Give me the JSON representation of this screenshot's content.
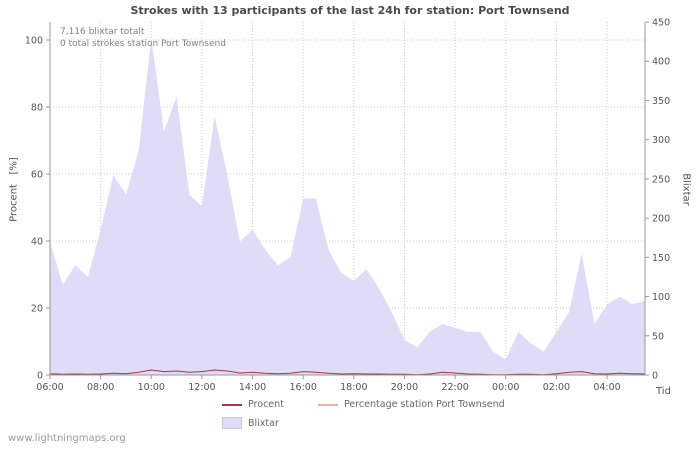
{
  "page": {
    "watermark": "www.lightningmaps.org"
  },
  "chart_data": {
    "type": "area",
    "title": "Strokes with 13 participants of the last 24h for station: Port Townsend",
    "annotations": [
      "7,116 blixtar totalt",
      "0 total strokes station Port Townsend"
    ],
    "xlabel": "Tid",
    "ylabel_left": "Procent   [%]",
    "ylabel_right": "Blixtar",
    "x_tick_labels": [
      "06:00",
      "08:00",
      "10:00",
      "12:00",
      "14:00",
      "16:00",
      "18:00",
      "20:00",
      "22:00",
      "00:00",
      "02:00",
      "04:00"
    ],
    "left_axis": {
      "min": 0,
      "max": 100,
      "ticks": [
        0,
        20,
        40,
        60,
        80,
        100
      ]
    },
    "right_axis": {
      "min": 0,
      "max": 450,
      "ticks": [
        0,
        50,
        100,
        150,
        200,
        250,
        300,
        350,
        400,
        450
      ]
    },
    "x": [
      "06:00",
      "06:30",
      "07:00",
      "07:30",
      "08:00",
      "08:30",
      "09:00",
      "09:30",
      "10:00",
      "10:30",
      "11:00",
      "11:30",
      "12:00",
      "12:30",
      "13:00",
      "13:30",
      "14:00",
      "14:30",
      "15:00",
      "15:30",
      "16:00",
      "16:30",
      "17:00",
      "17:30",
      "18:00",
      "18:30",
      "19:00",
      "19:30",
      "20:00",
      "20:30",
      "21:00",
      "21:30",
      "22:00",
      "22:30",
      "23:00",
      "23:30",
      "00:00",
      "00:30",
      "01:00",
      "01:30",
      "02:00",
      "02:30",
      "03:00",
      "03:30",
      "04:00",
      "04:30",
      "05:00",
      "05:30"
    ],
    "series": [
      {
        "name": "Blixtar",
        "type": "area",
        "axis": "right",
        "color": "#dedcf7",
        "values": [
          170,
          115,
          140,
          125,
          185,
          255,
          230,
          285,
          430,
          310,
          355,
          230,
          215,
          330,
          255,
          170,
          185,
          160,
          140,
          150,
          225,
          225,
          160,
          130,
          120,
          135,
          110,
          80,
          45,
          35,
          55,
          65,
          60,
          55,
          55,
          30,
          20,
          55,
          40,
          30,
          55,
          80,
          155,
          65,
          90,
          100,
          90,
          95
        ]
      },
      {
        "name": "Procent",
        "type": "line",
        "axis": "left",
        "color": "#aa3344",
        "values": [
          0.4,
          0.2,
          0.3,
          0.2,
          0.3,
          0.5,
          0.4,
          0.8,
          1.5,
          1.0,
          1.2,
          0.8,
          1.0,
          1.5,
          1.2,
          0.6,
          0.8,
          0.5,
          0.4,
          0.5,
          1.0,
          0.8,
          0.5,
          0.3,
          0.4,
          0.3,
          0.3,
          0.2,
          0.2,
          0.1,
          0.3,
          0.8,
          0.6,
          0.3,
          0.2,
          0.1,
          0.1,
          0.2,
          0.2,
          0.1,
          0.4,
          0.8,
          1.0,
          0.4,
          0.3,
          0.5,
          0.4,
          0.3
        ]
      },
      {
        "name": "Percentage station Port Townsend",
        "type": "line",
        "axis": "left",
        "color": "#f0b39e",
        "values": [
          0,
          0,
          0,
          0,
          0,
          0,
          0,
          0,
          0,
          0,
          0,
          0,
          0,
          0,
          0,
          0,
          0,
          0,
          0,
          0,
          0,
          0,
          0,
          0,
          0,
          0,
          0,
          0,
          0,
          0,
          0,
          0,
          0,
          0,
          0,
          0,
          0,
          0,
          0,
          0,
          0,
          0,
          0,
          0,
          0,
          0,
          0,
          0
        ]
      }
    ],
    "legend": [
      {
        "label": "Procent",
        "marker": "line",
        "color": "#aa3344"
      },
      {
        "label": "Percentage station Port Townsend",
        "marker": "line",
        "color": "#f0b39e"
      },
      {
        "label": "Blixtar",
        "marker": "area",
        "color": "#dedcf7"
      }
    ],
    "style": {
      "grid_color": "#cccccc",
      "axis_color": "#999999"
    }
  }
}
